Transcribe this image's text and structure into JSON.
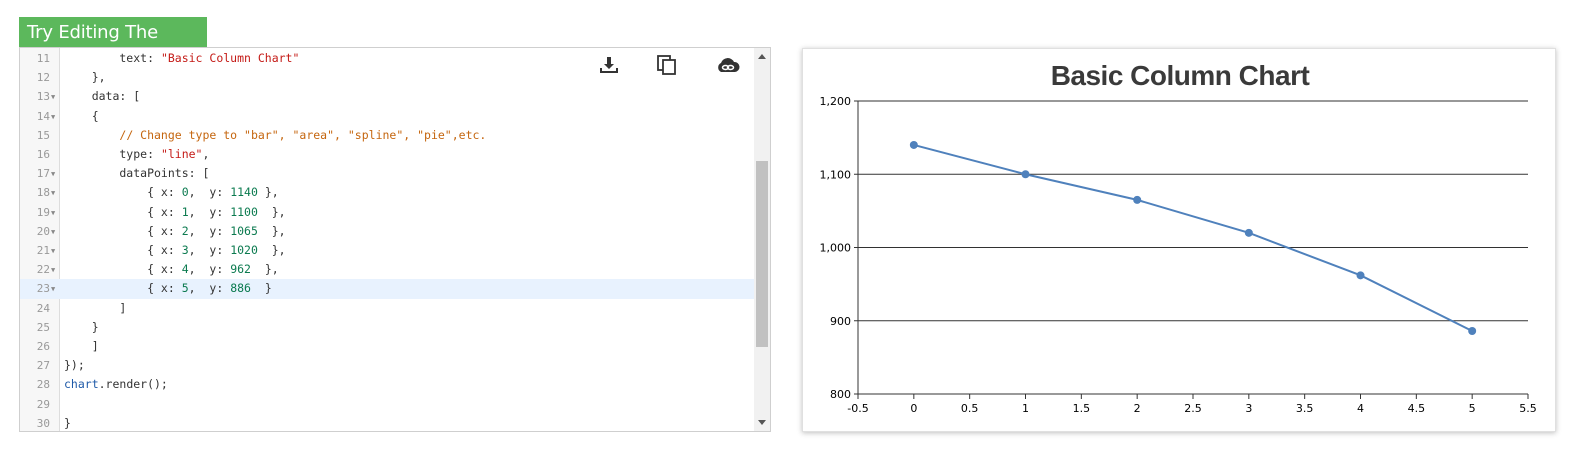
{
  "badge": {
    "label": "Try Editing The Code"
  },
  "editor": {
    "lines": [
      {
        "num": "11",
        "fold": false,
        "tokens": [
          {
            "t": "        text: ",
            "c": "plain"
          },
          {
            "t": "\"Basic Column Chart\"",
            "c": "string"
          }
        ]
      },
      {
        "num": "12",
        "fold": false,
        "tokens": [
          {
            "t": "    },",
            "c": "plain"
          }
        ]
      },
      {
        "num": "13",
        "fold": true,
        "tokens": [
          {
            "t": "    data: [",
            "c": "plain"
          }
        ]
      },
      {
        "num": "14",
        "fold": true,
        "tokens": [
          {
            "t": "    {",
            "c": "plain"
          }
        ]
      },
      {
        "num": "15",
        "fold": false,
        "tokens": [
          {
            "t": "        ",
            "c": "plain"
          },
          {
            "t": "// Change type to \"bar\", \"area\", \"spline\", \"pie\",etc.",
            "c": "comment"
          }
        ]
      },
      {
        "num": "16",
        "fold": false,
        "tokens": [
          {
            "t": "        type: ",
            "c": "plain"
          },
          {
            "t": "\"line\"",
            "c": "string"
          },
          {
            "t": ",",
            "c": "plain"
          }
        ]
      },
      {
        "num": "17",
        "fold": true,
        "tokens": [
          {
            "t": "        dataPoints: [",
            "c": "plain"
          }
        ]
      },
      {
        "num": "18",
        "fold": true,
        "tokens": [
          {
            "t": "            { x: ",
            "c": "plain"
          },
          {
            "t": "0",
            "c": "number"
          },
          {
            "t": ",  y: ",
            "c": "plain"
          },
          {
            "t": "1140",
            "c": "number"
          },
          {
            "t": " },",
            "c": "plain"
          }
        ]
      },
      {
        "num": "19",
        "fold": true,
        "tokens": [
          {
            "t": "            { x: ",
            "c": "plain"
          },
          {
            "t": "1",
            "c": "number"
          },
          {
            "t": ",  y: ",
            "c": "plain"
          },
          {
            "t": "1100",
            "c": "number"
          },
          {
            "t": "  },",
            "c": "plain"
          }
        ]
      },
      {
        "num": "20",
        "fold": true,
        "tokens": [
          {
            "t": "            { x: ",
            "c": "plain"
          },
          {
            "t": "2",
            "c": "number"
          },
          {
            "t": ",  y: ",
            "c": "plain"
          },
          {
            "t": "1065",
            "c": "number"
          },
          {
            "t": "  },",
            "c": "plain"
          }
        ]
      },
      {
        "num": "21",
        "fold": true,
        "tokens": [
          {
            "t": "            { x: ",
            "c": "plain"
          },
          {
            "t": "3",
            "c": "number"
          },
          {
            "t": ",  y: ",
            "c": "plain"
          },
          {
            "t": "1020",
            "c": "number"
          },
          {
            "t": "  },",
            "c": "plain"
          }
        ]
      },
      {
        "num": "22",
        "fold": true,
        "tokens": [
          {
            "t": "            { x: ",
            "c": "plain"
          },
          {
            "t": "4",
            "c": "number"
          },
          {
            "t": ",  y: ",
            "c": "plain"
          },
          {
            "t": "962",
            "c": "number"
          },
          {
            "t": "  },",
            "c": "plain"
          }
        ]
      },
      {
        "num": "23",
        "fold": true,
        "active": true,
        "tokens": [
          {
            "t": "            { x: ",
            "c": "plain"
          },
          {
            "t": "5",
            "c": "number"
          },
          {
            "t": ",  y: ",
            "c": "plain"
          },
          {
            "t": "886",
            "c": "number"
          },
          {
            "t": "  }",
            "c": "plain"
          }
        ]
      },
      {
        "num": "24",
        "fold": false,
        "tokens": [
          {
            "t": "        ]",
            "c": "plain"
          }
        ]
      },
      {
        "num": "25",
        "fold": false,
        "tokens": [
          {
            "t": "    }",
            "c": "plain"
          }
        ]
      },
      {
        "num": "26",
        "fold": false,
        "tokens": [
          {
            "t": "    ]",
            "c": "plain"
          }
        ]
      },
      {
        "num": "27",
        "fold": false,
        "tokens": [
          {
            "t": "});",
            "c": "plain"
          }
        ]
      },
      {
        "num": "28",
        "fold": false,
        "tokens": [
          {
            "t": "chart",
            "c": "ident"
          },
          {
            "t": ".render();",
            "c": "plain"
          }
        ]
      },
      {
        "num": "29",
        "fold": false,
        "tokens": [
          {
            "t": "",
            "c": "plain"
          }
        ]
      },
      {
        "num": "30",
        "fold": false,
        "tokens": [
          {
            "t": "}",
            "c": "plain"
          }
        ]
      }
    ],
    "toolbar": {
      "icons": [
        "download-icon",
        "copy-icon",
        "cloud-link-icon"
      ]
    }
  },
  "colors": {
    "badge": "#5cb85c",
    "series_line": "#4f81bc",
    "grid": "#000000",
    "string": "#c41a16",
    "comment": "#c5660f",
    "number": "#0b7a4f"
  },
  "chart_data": {
    "type": "line",
    "title": "Basic Column Chart",
    "xlabel": "",
    "ylabel": "",
    "x": [
      0,
      1,
      2,
      3,
      4,
      5
    ],
    "series": [
      {
        "values": [
          1140,
          1100,
          1065,
          1020,
          962,
          886
        ]
      }
    ],
    "xlim": [
      -0.5,
      5.5
    ],
    "ylim": [
      800,
      1200
    ],
    "x_ticks": [
      -0.5,
      0,
      0.5,
      1,
      1.5,
      2,
      2.5,
      3,
      3.5,
      4,
      4.5,
      5,
      5.5
    ],
    "x_tick_labels": [
      "-0.5",
      "0",
      "0.5",
      "1",
      "1.5",
      "2",
      "2.5",
      "3",
      "3.5",
      "4",
      "4.5",
      "5",
      "5.5"
    ],
    "y_ticks": [
      800,
      900,
      1000,
      1100,
      1200
    ],
    "y_tick_labels": [
      "800",
      "900",
      "1,000",
      "1,100",
      "1,200"
    ],
    "grid": "horizontal",
    "legend": "none"
  }
}
